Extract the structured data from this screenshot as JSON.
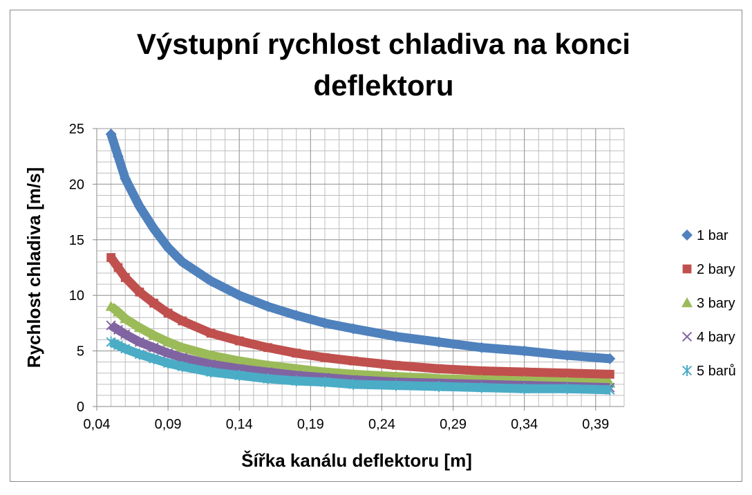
{
  "chart_data": {
    "type": "scatter",
    "title": [
      "Výstupní rychlost chladiva na konci",
      "deflektoru"
    ],
    "x_label": "Šířka kanálu deflektoru [m]",
    "y_label": "Rychlost chladiva [m/s]",
    "x": [
      0.05,
      0.055,
      0.06,
      0.07,
      0.08,
      0.09,
      0.1,
      0.12,
      0.14,
      0.16,
      0.18,
      0.2,
      0.22,
      0.25,
      0.28,
      0.31,
      0.34,
      0.37,
      0.4
    ],
    "series": [
      {
        "name": "1 bar",
        "color": "#4f81bd",
        "marker": "diamond",
        "values": [
          24.5,
          22.5,
          20.5,
          18,
          16,
          14.3,
          13,
          11.3,
          10,
          9,
          8.2,
          7.5,
          7,
          6.3,
          5.8,
          5.3,
          5,
          4.6,
          4.3
        ]
      },
      {
        "name": "2 bary",
        "color": "#c0504d",
        "marker": "square",
        "values": [
          13.4,
          12.5,
          11.6,
          10.3,
          9.3,
          8.4,
          7.7,
          6.6,
          5.9,
          5.3,
          4.8,
          4.4,
          4.1,
          3.7,
          3.4,
          3.2,
          3.1,
          3.0,
          2.9
        ]
      },
      {
        "name": "3 bary",
        "color": "#9bbb59",
        "marker": "triangle",
        "values": [
          9,
          8.5,
          7.9,
          7.1,
          6.4,
          5.8,
          5.3,
          4.6,
          4.1,
          3.7,
          3.4,
          3.1,
          2.9,
          2.7,
          2.5,
          2.4,
          2.3,
          2.2,
          2.1
        ]
      },
      {
        "name": "4 bary",
        "color": "#8064a2",
        "marker": "x",
        "values": [
          7.3,
          6.9,
          6.5,
          5.8,
          5.3,
          4.8,
          4.4,
          3.8,
          3.4,
          3.1,
          2.8,
          2.6,
          2.4,
          2.2,
          2.1,
          2.0,
          1.9,
          1.8,
          1.7
        ]
      },
      {
        "name": "5 barů",
        "color": "#4bacc6",
        "marker": "star",
        "values": [
          5.8,
          5.5,
          5.2,
          4.7,
          4.3,
          3.9,
          3.6,
          3.1,
          2.8,
          2.5,
          2.3,
          2.2,
          2.0,
          1.9,
          1.8,
          1.7,
          1.6,
          1.6,
          1.5
        ]
      }
    ],
    "xlim": [
      0.04,
      0.41
    ],
    "xticks": [
      {
        "value": 0.04,
        "label": "0,04"
      },
      {
        "value": 0.09,
        "label": "0,09"
      },
      {
        "value": 0.14,
        "label": "0,14"
      },
      {
        "value": 0.19,
        "label": "0,19"
      },
      {
        "value": 0.24,
        "label": "0,24"
      },
      {
        "value": 0.29,
        "label": "0,29"
      },
      {
        "value": 0.34,
        "label": "0,34"
      },
      {
        "value": 0.39,
        "label": "0,39"
      }
    ],
    "ylim": [
      0,
      25
    ],
    "yticks": [
      0,
      5,
      10,
      15,
      20,
      25
    ],
    "grid": true,
    "minor_grid": true,
    "legend": "right"
  }
}
